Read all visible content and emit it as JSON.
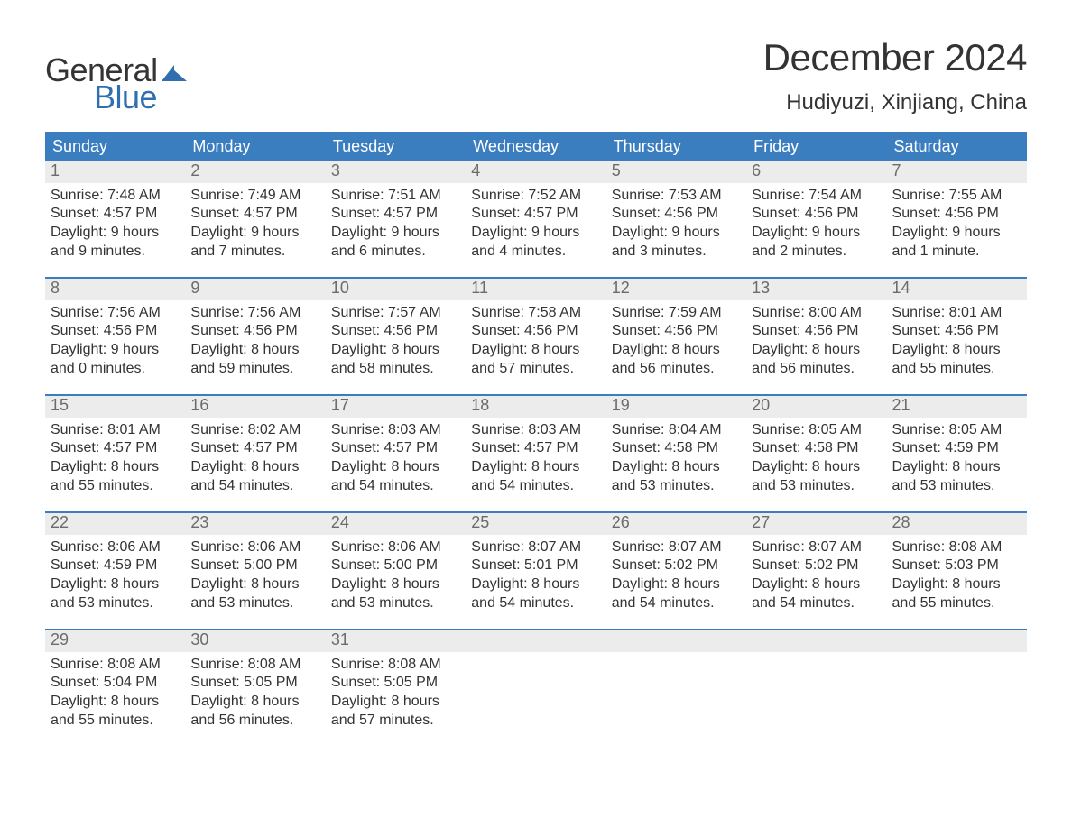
{
  "brand": {
    "word1": "General",
    "word2": "Blue",
    "accent": "#2f6fb0",
    "text_color": "#343434"
  },
  "title": {
    "month": "December 2024",
    "location": "Hudiyuzi, Xinjiang, China"
  },
  "colors": {
    "header_bg": "#3b7ec0",
    "header_text": "#ffffff",
    "daynum_bg": "#ececec",
    "daynum_text": "#6b6b6b",
    "body_text": "#333333",
    "week_border": "#3b7ec0",
    "page_bg": "#ffffff"
  },
  "typography": {
    "title_fontsize": 42,
    "location_fontsize": 24,
    "dayheader_fontsize": 18,
    "daynum_fontsize": 18,
    "body_fontsize": 16,
    "font_family": "Arial"
  },
  "day_headers": [
    "Sunday",
    "Monday",
    "Tuesday",
    "Wednesday",
    "Thursday",
    "Friday",
    "Saturday"
  ],
  "weeks": [
    [
      {
        "n": "1",
        "sunrise": "Sunrise: 7:48 AM",
        "sunset": "Sunset: 4:57 PM",
        "d1": "Daylight: 9 hours",
        "d2": "and 9 minutes."
      },
      {
        "n": "2",
        "sunrise": "Sunrise: 7:49 AM",
        "sunset": "Sunset: 4:57 PM",
        "d1": "Daylight: 9 hours",
        "d2": "and 7 minutes."
      },
      {
        "n": "3",
        "sunrise": "Sunrise: 7:51 AM",
        "sunset": "Sunset: 4:57 PM",
        "d1": "Daylight: 9 hours",
        "d2": "and 6 minutes."
      },
      {
        "n": "4",
        "sunrise": "Sunrise: 7:52 AM",
        "sunset": "Sunset: 4:57 PM",
        "d1": "Daylight: 9 hours",
        "d2": "and 4 minutes."
      },
      {
        "n": "5",
        "sunrise": "Sunrise: 7:53 AM",
        "sunset": "Sunset: 4:56 PM",
        "d1": "Daylight: 9 hours",
        "d2": "and 3 minutes."
      },
      {
        "n": "6",
        "sunrise": "Sunrise: 7:54 AM",
        "sunset": "Sunset: 4:56 PM",
        "d1": "Daylight: 9 hours",
        "d2": "and 2 minutes."
      },
      {
        "n": "7",
        "sunrise": "Sunrise: 7:55 AM",
        "sunset": "Sunset: 4:56 PM",
        "d1": "Daylight: 9 hours",
        "d2": "and 1 minute."
      }
    ],
    [
      {
        "n": "8",
        "sunrise": "Sunrise: 7:56 AM",
        "sunset": "Sunset: 4:56 PM",
        "d1": "Daylight: 9 hours",
        "d2": "and 0 minutes."
      },
      {
        "n": "9",
        "sunrise": "Sunrise: 7:56 AM",
        "sunset": "Sunset: 4:56 PM",
        "d1": "Daylight: 8 hours",
        "d2": "and 59 minutes."
      },
      {
        "n": "10",
        "sunrise": "Sunrise: 7:57 AM",
        "sunset": "Sunset: 4:56 PM",
        "d1": "Daylight: 8 hours",
        "d2": "and 58 minutes."
      },
      {
        "n": "11",
        "sunrise": "Sunrise: 7:58 AM",
        "sunset": "Sunset: 4:56 PM",
        "d1": "Daylight: 8 hours",
        "d2": "and 57 minutes."
      },
      {
        "n": "12",
        "sunrise": "Sunrise: 7:59 AM",
        "sunset": "Sunset: 4:56 PM",
        "d1": "Daylight: 8 hours",
        "d2": "and 56 minutes."
      },
      {
        "n": "13",
        "sunrise": "Sunrise: 8:00 AM",
        "sunset": "Sunset: 4:56 PM",
        "d1": "Daylight: 8 hours",
        "d2": "and 56 minutes."
      },
      {
        "n": "14",
        "sunrise": "Sunrise: 8:01 AM",
        "sunset": "Sunset: 4:56 PM",
        "d1": "Daylight: 8 hours",
        "d2": "and 55 minutes."
      }
    ],
    [
      {
        "n": "15",
        "sunrise": "Sunrise: 8:01 AM",
        "sunset": "Sunset: 4:57 PM",
        "d1": "Daylight: 8 hours",
        "d2": "and 55 minutes."
      },
      {
        "n": "16",
        "sunrise": "Sunrise: 8:02 AM",
        "sunset": "Sunset: 4:57 PM",
        "d1": "Daylight: 8 hours",
        "d2": "and 54 minutes."
      },
      {
        "n": "17",
        "sunrise": "Sunrise: 8:03 AM",
        "sunset": "Sunset: 4:57 PM",
        "d1": "Daylight: 8 hours",
        "d2": "and 54 minutes."
      },
      {
        "n": "18",
        "sunrise": "Sunrise: 8:03 AM",
        "sunset": "Sunset: 4:57 PM",
        "d1": "Daylight: 8 hours",
        "d2": "and 54 minutes."
      },
      {
        "n": "19",
        "sunrise": "Sunrise: 8:04 AM",
        "sunset": "Sunset: 4:58 PM",
        "d1": "Daylight: 8 hours",
        "d2": "and 53 minutes."
      },
      {
        "n": "20",
        "sunrise": "Sunrise: 8:05 AM",
        "sunset": "Sunset: 4:58 PM",
        "d1": "Daylight: 8 hours",
        "d2": "and 53 minutes."
      },
      {
        "n": "21",
        "sunrise": "Sunrise: 8:05 AM",
        "sunset": "Sunset: 4:59 PM",
        "d1": "Daylight: 8 hours",
        "d2": "and 53 minutes."
      }
    ],
    [
      {
        "n": "22",
        "sunrise": "Sunrise: 8:06 AM",
        "sunset": "Sunset: 4:59 PM",
        "d1": "Daylight: 8 hours",
        "d2": "and 53 minutes."
      },
      {
        "n": "23",
        "sunrise": "Sunrise: 8:06 AM",
        "sunset": "Sunset: 5:00 PM",
        "d1": "Daylight: 8 hours",
        "d2": "and 53 minutes."
      },
      {
        "n": "24",
        "sunrise": "Sunrise: 8:06 AM",
        "sunset": "Sunset: 5:00 PM",
        "d1": "Daylight: 8 hours",
        "d2": "and 53 minutes."
      },
      {
        "n": "25",
        "sunrise": "Sunrise: 8:07 AM",
        "sunset": "Sunset: 5:01 PM",
        "d1": "Daylight: 8 hours",
        "d2": "and 54 minutes."
      },
      {
        "n": "26",
        "sunrise": "Sunrise: 8:07 AM",
        "sunset": "Sunset: 5:02 PM",
        "d1": "Daylight: 8 hours",
        "d2": "and 54 minutes."
      },
      {
        "n": "27",
        "sunrise": "Sunrise: 8:07 AM",
        "sunset": "Sunset: 5:02 PM",
        "d1": "Daylight: 8 hours",
        "d2": "and 54 minutes."
      },
      {
        "n": "28",
        "sunrise": "Sunrise: 8:08 AM",
        "sunset": "Sunset: 5:03 PM",
        "d1": "Daylight: 8 hours",
        "d2": "and 55 minutes."
      }
    ],
    [
      {
        "n": "29",
        "sunrise": "Sunrise: 8:08 AM",
        "sunset": "Sunset: 5:04 PM",
        "d1": "Daylight: 8 hours",
        "d2": "and 55 minutes."
      },
      {
        "n": "30",
        "sunrise": "Sunrise: 8:08 AM",
        "sunset": "Sunset: 5:05 PM",
        "d1": "Daylight: 8 hours",
        "d2": "and 56 minutes."
      },
      {
        "n": "31",
        "sunrise": "Sunrise: 8:08 AM",
        "sunset": "Sunset: 5:05 PM",
        "d1": "Daylight: 8 hours",
        "d2": "and 57 minutes."
      },
      {
        "empty": true
      },
      {
        "empty": true
      },
      {
        "empty": true
      },
      {
        "empty": true
      }
    ]
  ]
}
